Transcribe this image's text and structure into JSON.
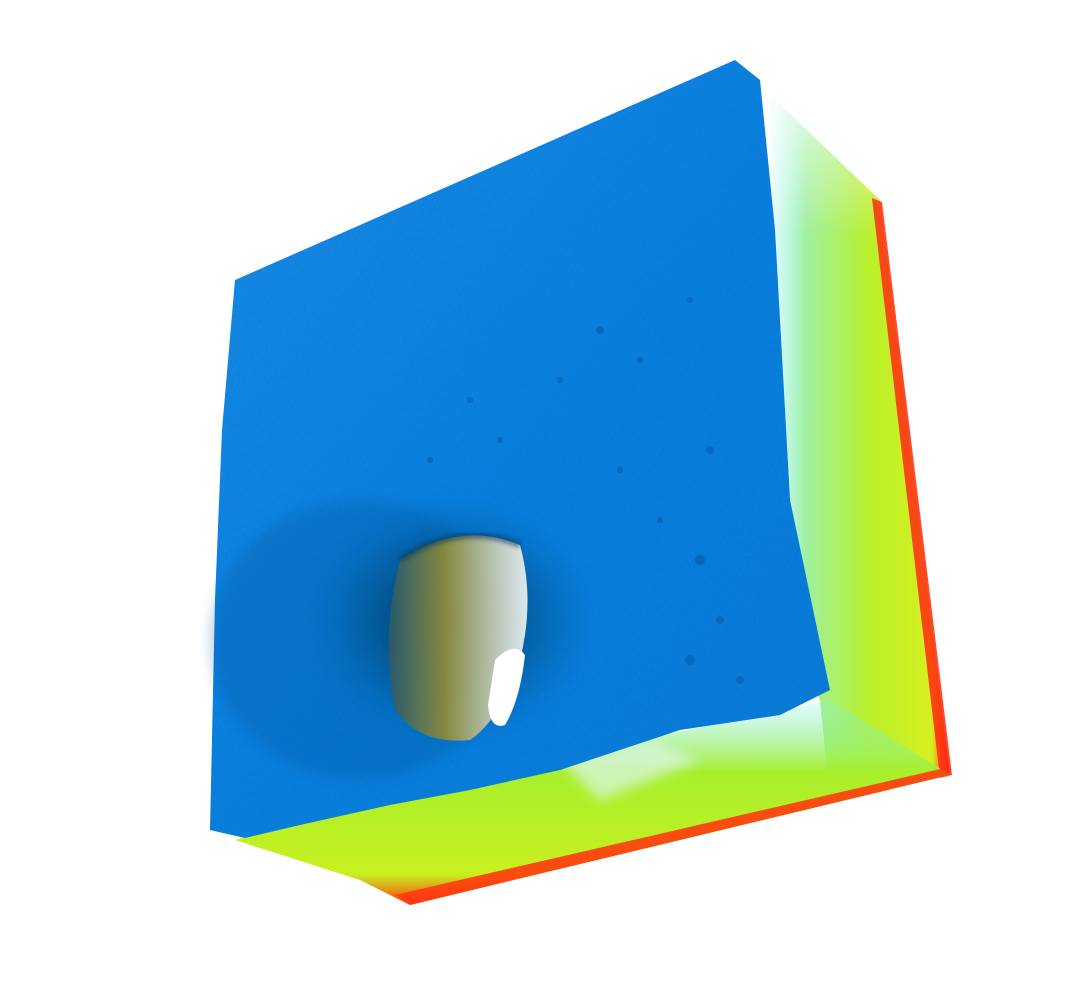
{
  "scene": {
    "subject": "volume-render",
    "colors": {
      "background": "#ffffff",
      "front_face": "#0a7fe0",
      "front_face_highlight": "#2f98f0",
      "front_face_shadow": "#04549e",
      "side_face_top": "#7fe84a",
      "side_face_mid": "#b9f02a",
      "side_face_edge": "#ff2a10",
      "bottom_face": "#a7ef2c",
      "cyan_transition": "#7ff1e8",
      "hole_interior": "#5a7a3a",
      "hole_through": "#ffffff"
    }
  }
}
